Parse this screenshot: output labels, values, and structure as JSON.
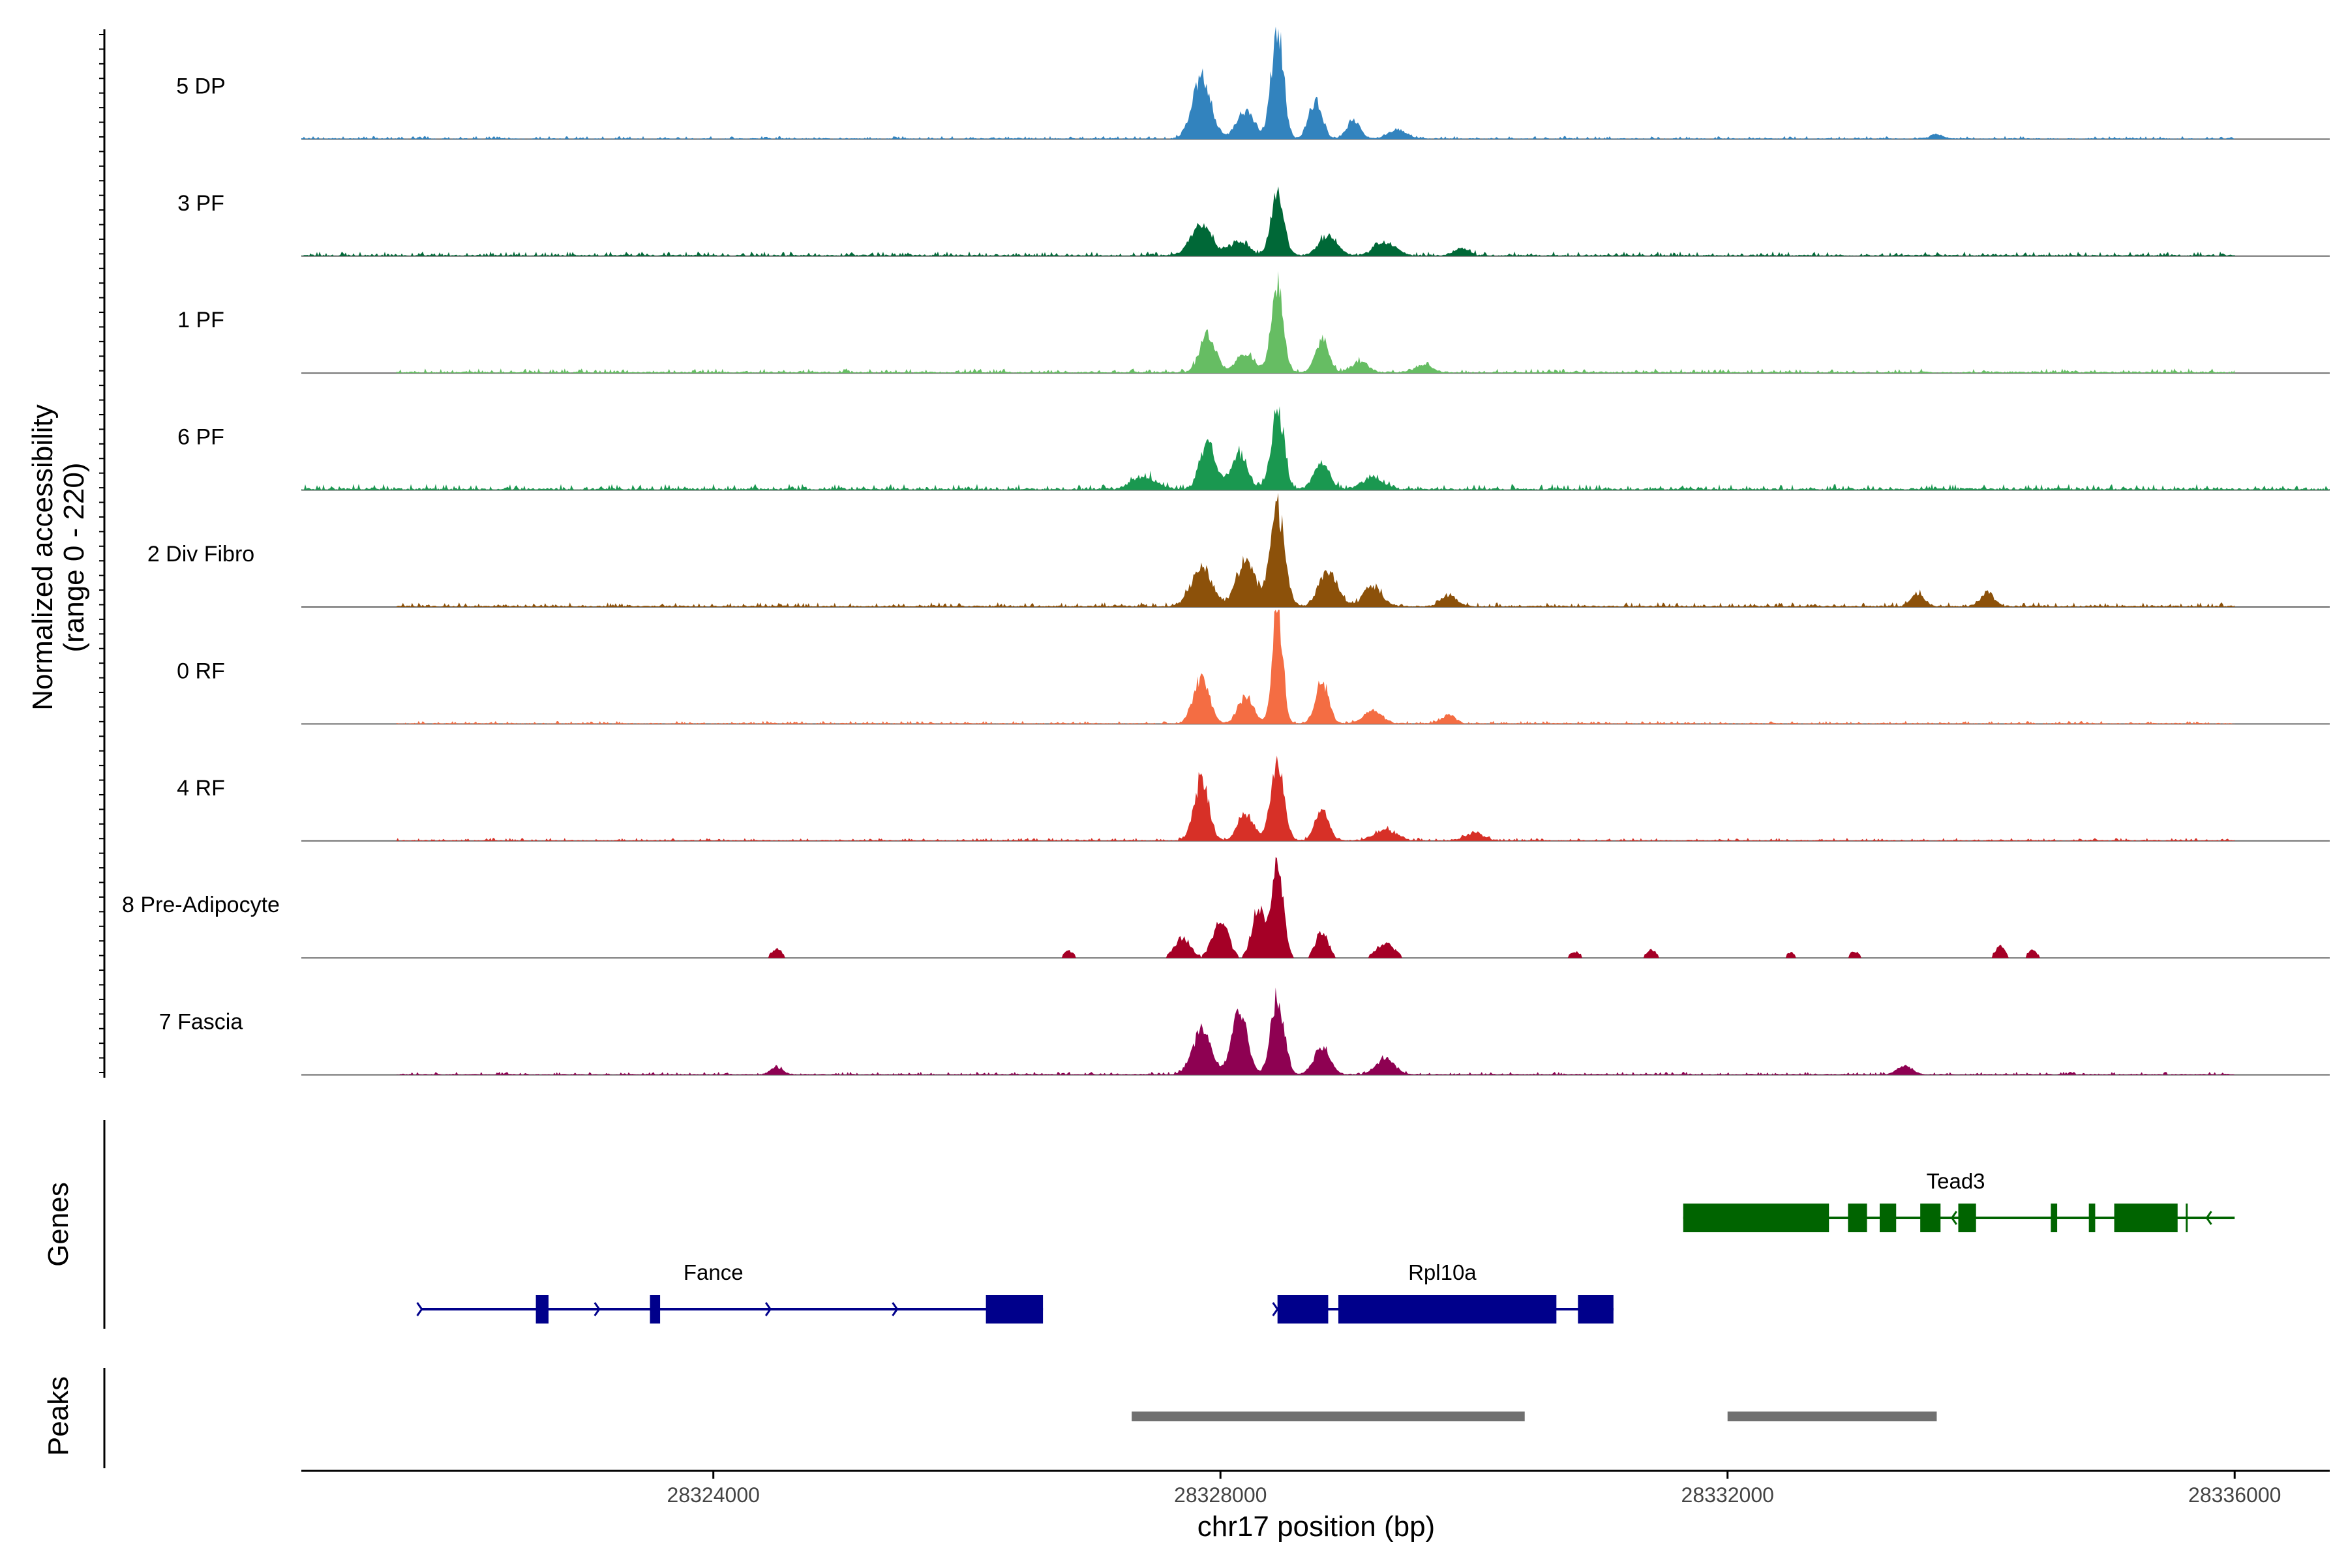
{
  "chart_data": {
    "type": "area",
    "title": "",
    "xlabel": "chr17 position (bp)",
    "ylabel": "Normalized accessibility",
    "ylabel_range": "(range 0 - 220)",
    "y_range": [
      0,
      220
    ],
    "xlim": [
      28320750,
      28336750
    ],
    "x_ticks": [
      28324000,
      28328000,
      28332000,
      28336000
    ],
    "x_tick_labels": [
      "28324000",
      "28328000",
      "28332000",
      "28336000"
    ],
    "tracks": [
      {
        "name": "5 DP",
        "color": "#3283BE",
        "noise": 2,
        "start": 28320750,
        "end": 28336000,
        "peaks": [
          [
            28327850,
            120,
            14
          ],
          [
            28328200,
            55,
            14
          ],
          [
            28328450,
            220,
            9
          ],
          [
            28328750,
            72,
            10
          ],
          [
            28329050,
            35,
            10
          ],
          [
            28329400,
            18,
            14
          ],
          [
            28333650,
            8,
            10
          ]
        ]
      },
      {
        "name": "3 PF",
        "color": "#006837",
        "noise": 3,
        "start": 28320750,
        "end": 28336000,
        "peaks": [
          [
            28327850,
            58,
            16
          ],
          [
            28328150,
            28,
            14
          ],
          [
            28328450,
            118,
            10
          ],
          [
            28328850,
            38,
            14
          ],
          [
            28329300,
            25,
            16
          ],
          [
            28329900,
            14,
            12
          ]
        ]
      },
      {
        "name": "1 PF",
        "color": "#66BD63",
        "noise": 3,
        "start": 28321500,
        "end": 28336000,
        "peaks": [
          [
            28327900,
            75,
            12
          ],
          [
            28328200,
            38,
            14
          ],
          [
            28328450,
            175,
            9
          ],
          [
            28328800,
            65,
            10
          ],
          [
            28329100,
            22,
            12
          ],
          [
            28329600,
            14,
            14
          ]
        ]
      },
      {
        "name": "6 PF",
        "color": "#1A9850",
        "noise": 4,
        "start": 28320750,
        "end": 28336750,
        "peaks": [
          [
            28327400,
            25,
            18
          ],
          [
            28327900,
            90,
            12
          ],
          [
            28328150,
            70,
            12
          ],
          [
            28328450,
            145,
            10
          ],
          [
            28328800,
            48,
            12
          ],
          [
            28329200,
            22,
            16
          ]
        ]
      },
      {
        "name": "2 Div Fibro",
        "color": "#8C510A",
        "noise": 3,
        "start": 28321500,
        "end": 28336000,
        "peaks": [
          [
            28327850,
            75,
            16
          ],
          [
            28328200,
            90,
            14
          ],
          [
            28328450,
            185,
            11
          ],
          [
            28328850,
            70,
            14
          ],
          [
            28329200,
            40,
            14
          ],
          [
            28329800,
            22,
            12
          ],
          [
            28333500,
            24,
            10
          ],
          [
            28334050,
            28,
            10
          ]
        ]
      },
      {
        "name": "0 RF",
        "color": "#F46D43",
        "noise": 2,
        "start": 28321500,
        "end": 28336000,
        "peaks": [
          [
            28327850,
            90,
            12
          ],
          [
            28328200,
            50,
            12
          ],
          [
            28328450,
            220,
            8
          ],
          [
            28328800,
            80,
            10
          ],
          [
            28329200,
            25,
            14
          ],
          [
            28329800,
            18,
            10
          ]
        ]
      },
      {
        "name": "4 RF",
        "color": "#D73027",
        "noise": 2,
        "start": 28321500,
        "end": 28336000,
        "peaks": [
          [
            28327850,
            118,
            11
          ],
          [
            28328200,
            52,
            12
          ],
          [
            28328450,
            158,
            10
          ],
          [
            28328800,
            62,
            10
          ],
          [
            28329300,
            22,
            16
          ],
          [
            28330000,
            14,
            14
          ]
        ]
      },
      {
        "name": "8 Pre-Adipocyte",
        "color": "#A50026",
        "noise": 0,
        "start": 28321500,
        "end": 28336000,
        "peaks": [
          [
            28327700,
            40,
            12
          ],
          [
            28328000,
            70,
            12
          ],
          [
            28328300,
            95,
            10
          ],
          [
            28328450,
            175,
            9
          ],
          [
            28328800,
            50,
            10
          ],
          [
            28329300,
            28,
            14
          ],
          [
            28324500,
            18,
            8
          ],
          [
            28326800,
            14,
            8
          ],
          [
            28330800,
            12,
            8
          ],
          [
            28331400,
            15,
            8
          ],
          [
            28332500,
            10,
            8
          ],
          [
            28333000,
            12,
            8
          ],
          [
            28334150,
            22,
            8
          ],
          [
            28334400,
            14,
            8
          ]
        ]
      },
      {
        "name": "7 Fascia",
        "color": "#8E0152",
        "noise": 2,
        "start": 28321500,
        "end": 28336000,
        "peaks": [
          [
            28327850,
            85,
            14
          ],
          [
            28328150,
            120,
            12
          ],
          [
            28328450,
            150,
            10
          ],
          [
            28328800,
            55,
            12
          ],
          [
            28329300,
            30,
            14
          ],
          [
            28324500,
            14,
            10
          ],
          [
            28333400,
            16,
            12
          ]
        ]
      }
    ],
    "genes_track_label": "Genes",
    "peaks_track_label": "Peaks",
    "genes": [
      {
        "name": "Fance",
        "color": "#00008B",
        "strand": "+",
        "row": 2,
        "start": 28321700,
        "end": 28326600,
        "exons": [
          [
            28322600,
            28322700
          ],
          [
            28323500,
            28323580
          ],
          [
            28326150,
            28326600
          ]
        ],
        "chevrons": [
          28321700,
          28323100,
          28324450,
          28325450
        ]
      },
      {
        "name": "Rpl10a",
        "color": "#00008B",
        "strand": "+",
        "row": 2,
        "start": 28328450,
        "end": 28331100,
        "exons": [
          [
            28328450,
            28328850
          ],
          [
            28328930,
            28330650
          ],
          [
            28330820,
            28331100
          ]
        ],
        "chevrons": [
          28328450
        ]
      },
      {
        "name": "Tead3",
        "color": "#006400",
        "strand": "-",
        "row": 1,
        "start": 28331650,
        "end": 28336000,
        "exons": [
          [
            28331650,
            28332800
          ],
          [
            28332950,
            28333100
          ],
          [
            28333200,
            28333330
          ],
          [
            28333520,
            28333680
          ],
          [
            28333820,
            28333960
          ],
          [
            28334550,
            28334600
          ],
          [
            28334850,
            28334900
          ],
          [
            28335050,
            28335550
          ]
        ],
        "chevrons": [
          28333770,
          28335780
        ]
      }
    ],
    "peaks": [
      {
        "start": 28327300,
        "end": 28330400
      },
      {
        "start": 28332000,
        "end": 28333650
      }
    ],
    "peak_color": "#707070"
  }
}
